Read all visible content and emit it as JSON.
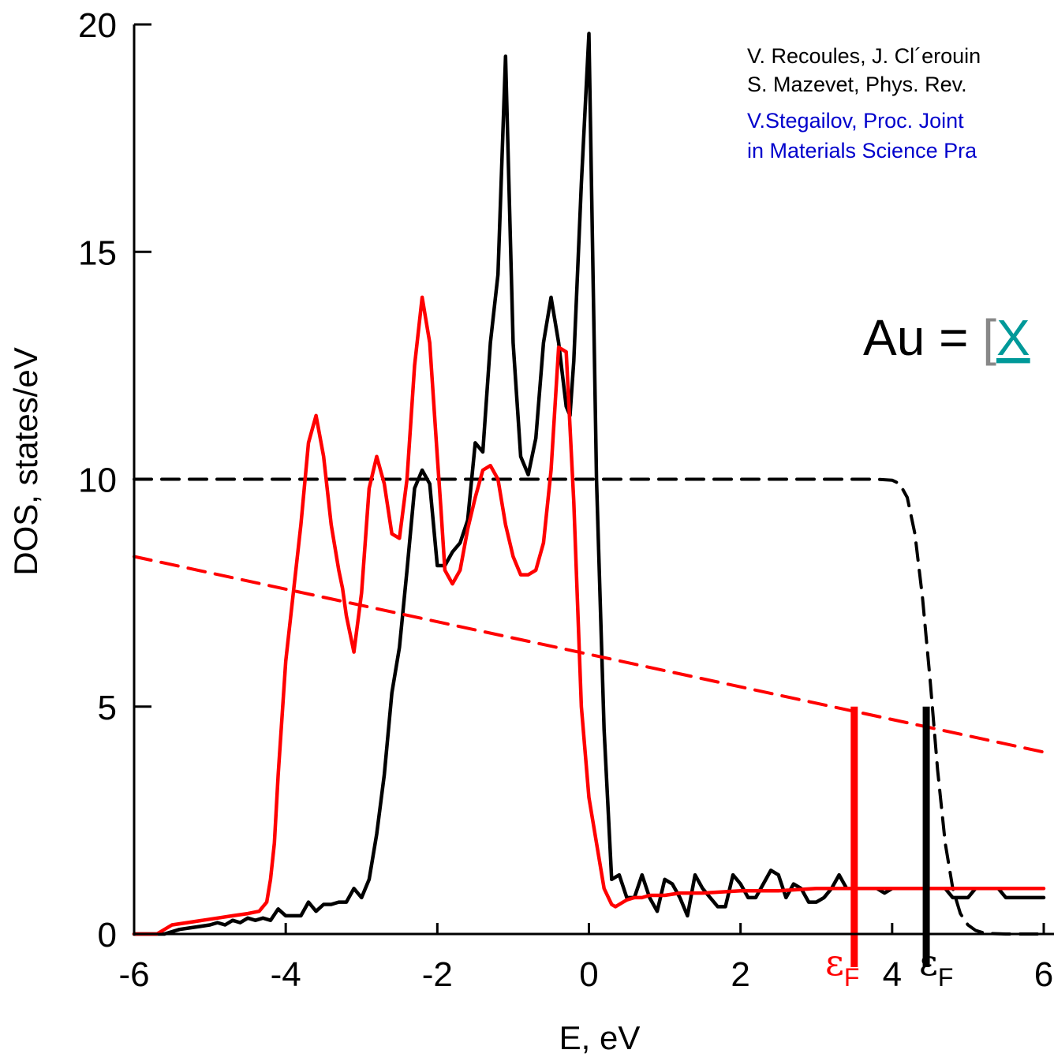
{
  "chart_data": {
    "type": "line",
    "xlabel": "E, eV",
    "ylabel": "DOS, states/eV",
    "xlim": [
      -6,
      6
    ],
    "ylim": [
      0,
      20
    ],
    "x_ticks": [
      "-6",
      "-4",
      "-2",
      "0",
      "2",
      "4",
      "6"
    ],
    "y_ticks": [
      "0",
      "5",
      "10",
      "15",
      "20"
    ],
    "grid": false,
    "series": [
      {
        "color": "#000000",
        "style": "solid",
        "x": [
          -6.0,
          -5.6,
          -5.4,
          -5.2,
          -5.0,
          -4.9,
          -4.8,
          -4.7,
          -4.6,
          -4.5,
          -4.4,
          -4.3,
          -4.2,
          -4.1,
          -4.0,
          -3.9,
          -3.8,
          -3.7,
          -3.6,
          -3.5,
          -3.4,
          -3.3,
          -3.2,
          -3.1,
          -3.0,
          -2.9,
          -2.8,
          -2.7,
          -2.6,
          -2.5,
          -2.4,
          -2.3,
          -2.2,
          -2.1,
          -2.0,
          -1.9,
          -1.8,
          -1.7,
          -1.6,
          -1.5,
          -1.4,
          -1.3,
          -1.2,
          -1.1,
          -1.0,
          -0.9,
          -0.8,
          -0.7,
          -0.6,
          -0.5,
          -0.4,
          -0.3,
          -0.25,
          -0.2,
          -0.1,
          0.0,
          0.1,
          0.2,
          0.3,
          0.4,
          0.5,
          0.6,
          0.7,
          0.8,
          0.9,
          1.0,
          1.1,
          1.2,
          1.3,
          1.4,
          1.5,
          1.6,
          1.7,
          1.8,
          1.9,
          2.0,
          2.1,
          2.2,
          2.3,
          2.4,
          2.5,
          2.6,
          2.7,
          2.8,
          2.9,
          3.0,
          3.1,
          3.2,
          3.3,
          3.4,
          3.5,
          3.6,
          3.7,
          3.8,
          3.9,
          4.0,
          4.1,
          4.2,
          4.3,
          4.4,
          4.5,
          4.6,
          4.7,
          4.8,
          4.9,
          5.0,
          5.1,
          5.2,
          5.3,
          5.4,
          5.5,
          5.6,
          5.7,
          5.8,
          5.9,
          6.0
        ],
        "y": [
          0.0,
          0.0,
          0.1,
          0.15,
          0.2,
          0.25,
          0.2,
          0.3,
          0.25,
          0.35,
          0.3,
          0.35,
          0.3,
          0.55,
          0.4,
          0.4,
          0.4,
          0.7,
          0.5,
          0.65,
          0.65,
          0.7,
          0.7,
          1.0,
          0.8,
          1.2,
          2.2,
          3.5,
          5.3,
          6.3,
          8.0,
          9.8,
          10.2,
          9.9,
          8.1,
          8.1,
          8.4,
          8.6,
          9.1,
          10.8,
          10.6,
          13.0,
          14.5,
          19.3,
          13.0,
          10.5,
          10.1,
          10.9,
          13.0,
          14.0,
          13.0,
          11.6,
          11.4,
          12.6,
          16.5,
          19.8,
          10.0,
          4.5,
          1.2,
          1.3,
          0.8,
          0.8,
          1.3,
          0.8,
          0.5,
          1.2,
          1.1,
          0.8,
          0.4,
          1.3,
          1.0,
          0.8,
          0.6,
          0.6,
          1.3,
          1.1,
          0.8,
          0.8,
          1.1,
          1.4,
          1.3,
          0.8,
          1.1,
          1.0,
          0.7,
          0.7,
          0.8,
          1.0,
          1.3,
          1.0,
          1.0,
          1.0,
          1.0,
          1.0,
          0.9,
          1.0,
          1.0,
          1.0,
          1.0,
          1.0,
          1.0,
          1.0,
          1.0,
          0.8,
          0.8,
          0.8,
          1.0,
          1.0,
          1.0,
          1.0,
          0.8,
          0.8,
          0.8,
          0.8,
          0.8,
          0.8
        ]
      },
      {
        "color": "#000000",
        "style": "dashed",
        "x": [
          -6.0,
          -5.0,
          -4.0,
          -3.0,
          -2.0,
          -1.0,
          0.0,
          1.0,
          2.0,
          3.0,
          3.8,
          4.0,
          4.1,
          4.2,
          4.3,
          4.4,
          4.5,
          4.6,
          4.7,
          4.8,
          4.9,
          5.0,
          5.1,
          5.2,
          5.3,
          5.5,
          5.8,
          6.0
        ],
        "y": [
          10,
          10,
          10,
          10,
          10,
          10,
          10,
          10,
          10,
          10,
          10,
          9.98,
          9.9,
          9.6,
          8.8,
          7.4,
          5.6,
          3.6,
          2.0,
          1.0,
          0.45,
          0.2,
          0.08,
          0.03,
          0.01,
          0,
          0,
          0
        ]
      },
      {
        "color": "#ff0000",
        "style": "solid",
        "x": [
          -6.0,
          -5.7,
          -5.5,
          -5.3,
          -5.1,
          -4.9,
          -4.7,
          -4.5,
          -4.35,
          -4.25,
          -4.2,
          -4.15,
          -4.1,
          -4.0,
          -3.9,
          -3.8,
          -3.7,
          -3.6,
          -3.5,
          -3.4,
          -3.3,
          -3.25,
          -3.2,
          -3.1,
          -3.0,
          -2.9,
          -2.8,
          -2.7,
          -2.6,
          -2.5,
          -2.4,
          -2.3,
          -2.2,
          -2.1,
          -2.0,
          -1.95,
          -1.9,
          -1.8,
          -1.7,
          -1.6,
          -1.5,
          -1.4,
          -1.3,
          -1.2,
          -1.1,
          -1.0,
          -0.9,
          -0.8,
          -0.7,
          -0.6,
          -0.5,
          -0.4,
          -0.3,
          -0.2,
          -0.1,
          0.0,
          0.1,
          0.2,
          0.3,
          0.35,
          0.4,
          0.5,
          0.6,
          0.65,
          0.7,
          0.8,
          1.0,
          1.2,
          1.5,
          2.0,
          2.5,
          3.0,
          3.5,
          4.0,
          4.5,
          5.0,
          5.5,
          6.0
        ],
        "y": [
          0.0,
          0.0,
          0.2,
          0.25,
          0.3,
          0.35,
          0.4,
          0.45,
          0.5,
          0.7,
          1.2,
          2.0,
          3.5,
          6.0,
          7.5,
          9.0,
          10.8,
          11.4,
          10.5,
          9.0,
          8.0,
          7.6,
          7.0,
          6.2,
          7.5,
          9.8,
          10.5,
          9.9,
          8.8,
          8.7,
          10.0,
          12.5,
          14.0,
          13.0,
          10.5,
          9.3,
          8.0,
          7.7,
          8.0,
          8.9,
          9.6,
          10.2,
          10.3,
          10.0,
          9.0,
          8.3,
          7.9,
          7.9,
          8.0,
          8.6,
          10.2,
          12.9,
          12.8,
          9.5,
          5.0,
          3.0,
          2.0,
          1.0,
          0.65,
          0.6,
          0.65,
          0.75,
          0.8,
          0.8,
          0.8,
          0.85,
          0.85,
          0.9,
          0.9,
          0.95,
          0.95,
          1.0,
          1.0,
          1.0,
          1.0,
          1.0,
          1.0,
          1.0
        ]
      },
      {
        "color": "#ff0000",
        "style": "dashed",
        "x": [
          -6.0,
          6.0
        ],
        "y": [
          8.3,
          4.0
        ]
      }
    ],
    "fermi_markers": [
      {
        "x": 3.5,
        "y_top": 5.0,
        "color": "#ff0000"
      },
      {
        "x": 4.45,
        "y_top": 5.0,
        "color": "#000000"
      }
    ]
  },
  "annotations": {
    "ref1_line1": "V. Recoules, J. Cl´erouin",
    "ref1_line2": "S. Mazevet, Phys. Rev.",
    "ref2_line1": "V.Stegailov,  Proc. Joint",
    "ref2_line2": "in Materials Science Pra",
    "formula_main": "Au = ",
    "formula_bracket": "[",
    "formula_link": "X",
    "fermi_symbol": "ε",
    "fermi_subscript": "F",
    "colors": {
      "black": "#000000",
      "red": "#ff0000",
      "blue": "#0000cc",
      "bracket_gray": "#888888",
      "link_teal": "#009999"
    }
  }
}
